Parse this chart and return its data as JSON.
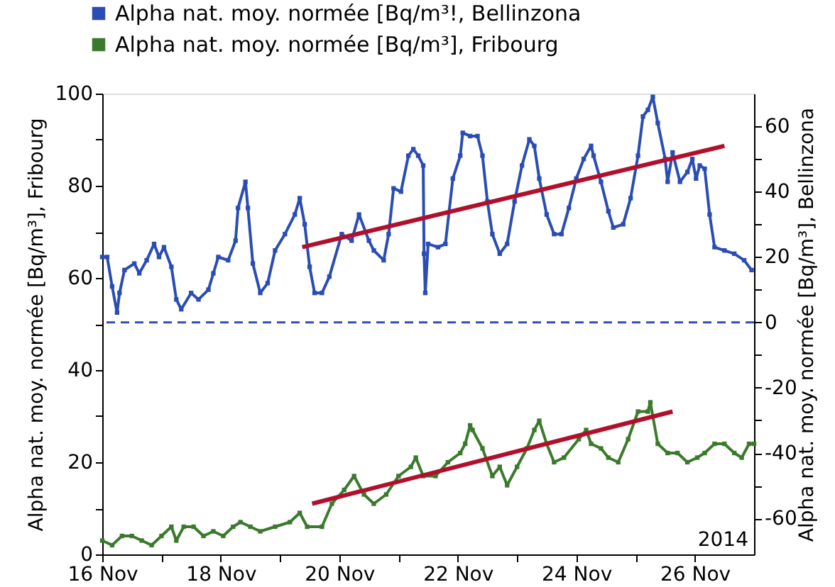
{
  "chart_data": {
    "type": "line",
    "ylabel": "Alpha nat. moy. normée [Bq/m³], Fribourg",
    "y2label": "Alpha nat. moy. normée [Bq/m³], Bellinzona",
    "xlim": [
      "2014-11-16",
      "2014-11-27"
    ],
    "xticks": [
      {
        "value": "2014-11-16",
        "label": "16 Nov"
      },
      {
        "value": "2014-11-17",
        "label": null
      },
      {
        "value": "2014-11-18",
        "label": "18 Nov"
      },
      {
        "value": "2014-11-19",
        "label": null
      },
      {
        "value": "2014-11-20",
        "label": "20 Nov"
      },
      {
        "value": "2014-11-21",
        "label": null
      },
      {
        "value": "2014-11-22",
        "label": "22 Nov"
      },
      {
        "value": "2014-11-23",
        "label": null
      },
      {
        "value": "2014-11-24",
        "label": "24 Nov"
      },
      {
        "value": "2014-11-25",
        "label": null
      },
      {
        "value": "2014-11-26",
        "label": "26 Nov"
      }
    ],
    "ylim": [
      0,
      100
    ],
    "yticks": [
      0,
      {
        "value": 10,
        "label": null
      },
      20,
      {
        "value": 30,
        "label": null
      },
      40,
      {
        "value": 50,
        "label": null
      },
      60,
      {
        "value": 70,
        "label": null
      },
      80,
      {
        "value": 90,
        "label": null
      },
      100
    ],
    "y2lim": [
      -71,
      70
    ],
    "y2ticks": [
      -60,
      {
        "value": -50,
        "label": null
      },
      -40,
      {
        "value": -30,
        "label": null
      },
      -20,
      {
        "value": -10,
        "label": null
      },
      0,
      {
        "value": 10,
        "label": null
      },
      20,
      {
        "value": 30,
        "label": null
      },
      40,
      {
        "value": 50,
        "label": null
      },
      60
    ],
    "grid": false,
    "legend": "top left",
    "annotations": [
      "2014"
    ],
    "ref_lines": [
      {
        "axis": "y2",
        "value": 0,
        "color": "#3050b8",
        "line_style": "dashed"
      }
    ],
    "series": [
      {
        "name": "Alpha nat. moy. normée [Bq/m³!, Bellinzona",
        "color": "#2a4db5",
        "axis": "y2",
        "marker": "square",
        "x": [
          "2014-11-16T00:00",
          "2014-11-16T02:00",
          "2014-11-16T04:00",
          "2014-11-16T06:00",
          "2014-11-16T07:00",
          "2014-11-16T09:00",
          "2014-11-16T13:00",
          "2014-11-16T15:00",
          "2014-11-16T18:00",
          "2014-11-16T21:00",
          "2014-11-16T23:00",
          "2014-11-17T01:00",
          "2014-11-17T04:00",
          "2014-11-17T06:00",
          "2014-11-17T08:00",
          "2014-11-17T12:00",
          "2014-11-17T15:00",
          "2014-11-17T19:00",
          "2014-11-17T21:00",
          "2014-11-17T23:00",
          "2014-11-18T03:00",
          "2014-11-18T06:00",
          "2014-11-18T07:00",
          "2014-11-18T10:00",
          "2014-11-18T11:00",
          "2014-11-18T13:00",
          "2014-11-18T16:00",
          "2014-11-18T19:00",
          "2014-11-18T22:00",
          "2014-11-19T02:00",
          "2014-11-19T06:00",
          "2014-11-19T08:00",
          "2014-11-19T10:00",
          "2014-11-19T12:00",
          "2014-11-19T14:00",
          "2014-11-19T17:00",
          "2014-11-19T20:00",
          "2014-11-20T01:00",
          "2014-11-20T05:00",
          "2014-11-20T08:00",
          "2014-11-20T12:00",
          "2014-11-20T14:00",
          "2014-11-20T18:00",
          "2014-11-20T20:00",
          "2014-11-20T22:00",
          "2014-11-21T01:00",
          "2014-11-21T04:00",
          "2014-11-21T06:00",
          "2014-11-21T08:00",
          "2014-11-21T10:00",
          "2014-11-21T10:20",
          "2014-11-21T10:50",
          "2014-11-21T12:00",
          "2014-11-21T16:00",
          "2014-11-21T19:00",
          "2014-11-21T22:00",
          "2014-11-22T01:00",
          "2014-11-22T02:00",
          "2014-11-22T05:00",
          "2014-11-22T08:00",
          "2014-11-22T10:00",
          "2014-11-22T12:00",
          "2014-11-22T14:00",
          "2014-11-22T17:00",
          "2014-11-22T20:00",
          "2014-11-22T23:00",
          "2014-11-23T02:00",
          "2014-11-23T05:00",
          "2014-11-23T07:00",
          "2014-11-23T09:00",
          "2014-11-23T12:00",
          "2014-11-23T15:00",
          "2014-11-23T18:00",
          "2014-11-23T21:00",
          "2014-11-24T00:00",
          "2014-11-24T03:00",
          "2014-11-24T06:00",
          "2014-11-24T07:00",
          "2014-11-24T10:00",
          "2014-11-24T13:00",
          "2014-11-24T15:00",
          "2014-11-24T19:00",
          "2014-11-24T22:00",
          "2014-11-25T01:00",
          "2014-11-25T03:00",
          "2014-11-25T05:00",
          "2014-11-25T07:00",
          "2014-11-25T09:00",
          "2014-11-25T12:00",
          "2014-11-25T13:00",
          "2014-11-25T15:00",
          "2014-11-25T18:00",
          "2014-11-25T21:00",
          "2014-11-25T23:00",
          "2014-11-26T00:30",
          "2014-11-26T02:00",
          "2014-11-26T04:00",
          "2014-11-26T06:00",
          "2014-11-26T08:00",
          "2014-11-26T12:00",
          "2014-11-26T16:00",
          "2014-11-26T20:00",
          "2014-11-26T23:00"
        ],
        "values": [
          20,
          20,
          11,
          3,
          9,
          16,
          18,
          15,
          19,
          24,
          20,
          23,
          17,
          7,
          4,
          9,
          7,
          10,
          15,
          20,
          19,
          25,
          35,
          43,
          35,
          18,
          9,
          12,
          22,
          27,
          33,
          38,
          30,
          17,
          9,
          9,
          14,
          27,
          25,
          33,
          25,
          22,
          19,
          27,
          41,
          40,
          51,
          53,
          51,
          48,
          21,
          9,
          24,
          23,
          24,
          44,
          51,
          58,
          57,
          57,
          51,
          37,
          27,
          21,
          24,
          37,
          48,
          56,
          54,
          44,
          33,
          27,
          27,
          35,
          44,
          50,
          54,
          51,
          43,
          34,
          29,
          30,
          38,
          51,
          63,
          65,
          69,
          61,
          50,
          43,
          52,
          43,
          46,
          50,
          44,
          48,
          47,
          33,
          23,
          22,
          21,
          19,
          16
        ]
      },
      {
        "name": "Alpha nat. moy. normée [Bq/m³], Fribourg",
        "color": "#3b7a2c",
        "axis": "y",
        "marker": "square",
        "x": [
          "2014-11-16T00:00",
          "2014-11-16T04:00",
          "2014-11-16T08:00",
          "2014-11-16T12:00",
          "2014-11-16T16:00",
          "2014-11-16T20:00",
          "2014-11-17T00:00",
          "2014-11-17T04:00",
          "2014-11-17T06:00",
          "2014-11-17T09:00",
          "2014-11-17T13:00",
          "2014-11-17T17:00",
          "2014-11-17T21:00",
          "2014-11-18T01:00",
          "2014-11-18T05:00",
          "2014-11-18T08:00",
          "2014-11-18T12:00",
          "2014-11-18T16:00",
          "2014-11-18T22:00",
          "2014-11-19T04:00",
          "2014-11-19T08:00",
          "2014-11-19T11:00",
          "2014-11-19T17:00",
          "2014-11-19T21:00",
          "2014-11-20T02:00",
          "2014-11-20T06:00",
          "2014-11-20T10:00",
          "2014-11-20T14:00",
          "2014-11-20T19:00",
          "2014-11-21T00:00",
          "2014-11-21T05:00",
          "2014-11-21T07:00",
          "2014-11-21T10:00",
          "2014-11-21T15:00",
          "2014-11-21T20:00",
          "2014-11-22T01:00",
          "2014-11-22T03:00",
          "2014-11-22T05:00",
          "2014-11-22T06:00",
          "2014-11-22T10:00",
          "2014-11-22T14:00",
          "2014-11-22T17:00",
          "2014-11-22T20:00",
          "2014-11-23T00:00",
          "2014-11-23T04:00",
          "2014-11-23T07:00",
          "2014-11-23T09:00",
          "2014-11-23T12:00",
          "2014-11-23T15:00",
          "2014-11-23T19:00",
          "2014-11-24T01:00",
          "2014-11-24T04:00",
          "2014-11-24T06:00",
          "2014-11-24T10:00",
          "2014-11-24T13:00",
          "2014-11-24T17:00",
          "2014-11-24T21:00",
          "2014-11-25T01:00",
          "2014-11-25T05:00",
          "2014-11-25T06:00",
          "2014-11-25T09:00",
          "2014-11-25T13:00",
          "2014-11-25T17:00",
          "2014-11-25T21:00",
          "2014-11-26T01:00",
          "2014-11-26T04:00",
          "2014-11-26T08:00",
          "2014-11-26T12:00",
          "2014-11-26T16:00",
          "2014-11-26T19:00",
          "2014-11-26T22:00",
          "2014-11-27T00:00"
        ],
        "values": [
          3,
          2,
          4,
          4,
          3,
          2,
          4,
          6,
          3,
          6,
          6,
          4,
          5,
          4,
          6,
          7,
          6,
          5,
          6,
          7,
          9,
          6,
          6,
          11,
          14,
          17,
          13,
          11,
          13,
          17,
          19,
          21,
          17,
          17,
          20,
          22,
          24,
          28,
          27,
          23,
          17,
          19,
          15,
          19,
          23,
          27,
          29,
          24,
          20,
          21,
          25,
          27,
          24,
          23,
          21,
          20,
          25,
          31,
          31,
          33,
          24,
          22,
          22,
          20,
          21,
          22,
          24,
          24,
          22,
          21,
          24,
          24
        ]
      },
      {
        "color": "#b0102c",
        "axis": "y2",
        "x": [
          "2014-11-19T09:00",
          "2014-11-26T12:00"
        ],
        "values": [
          23,
          54
        ]
      },
      {
        "color": "#b0102c",
        "axis": "y",
        "x": [
          "2014-11-19T13:00",
          "2014-11-25T15:00"
        ],
        "values": [
          11,
          31
        ]
      }
    ]
  }
}
